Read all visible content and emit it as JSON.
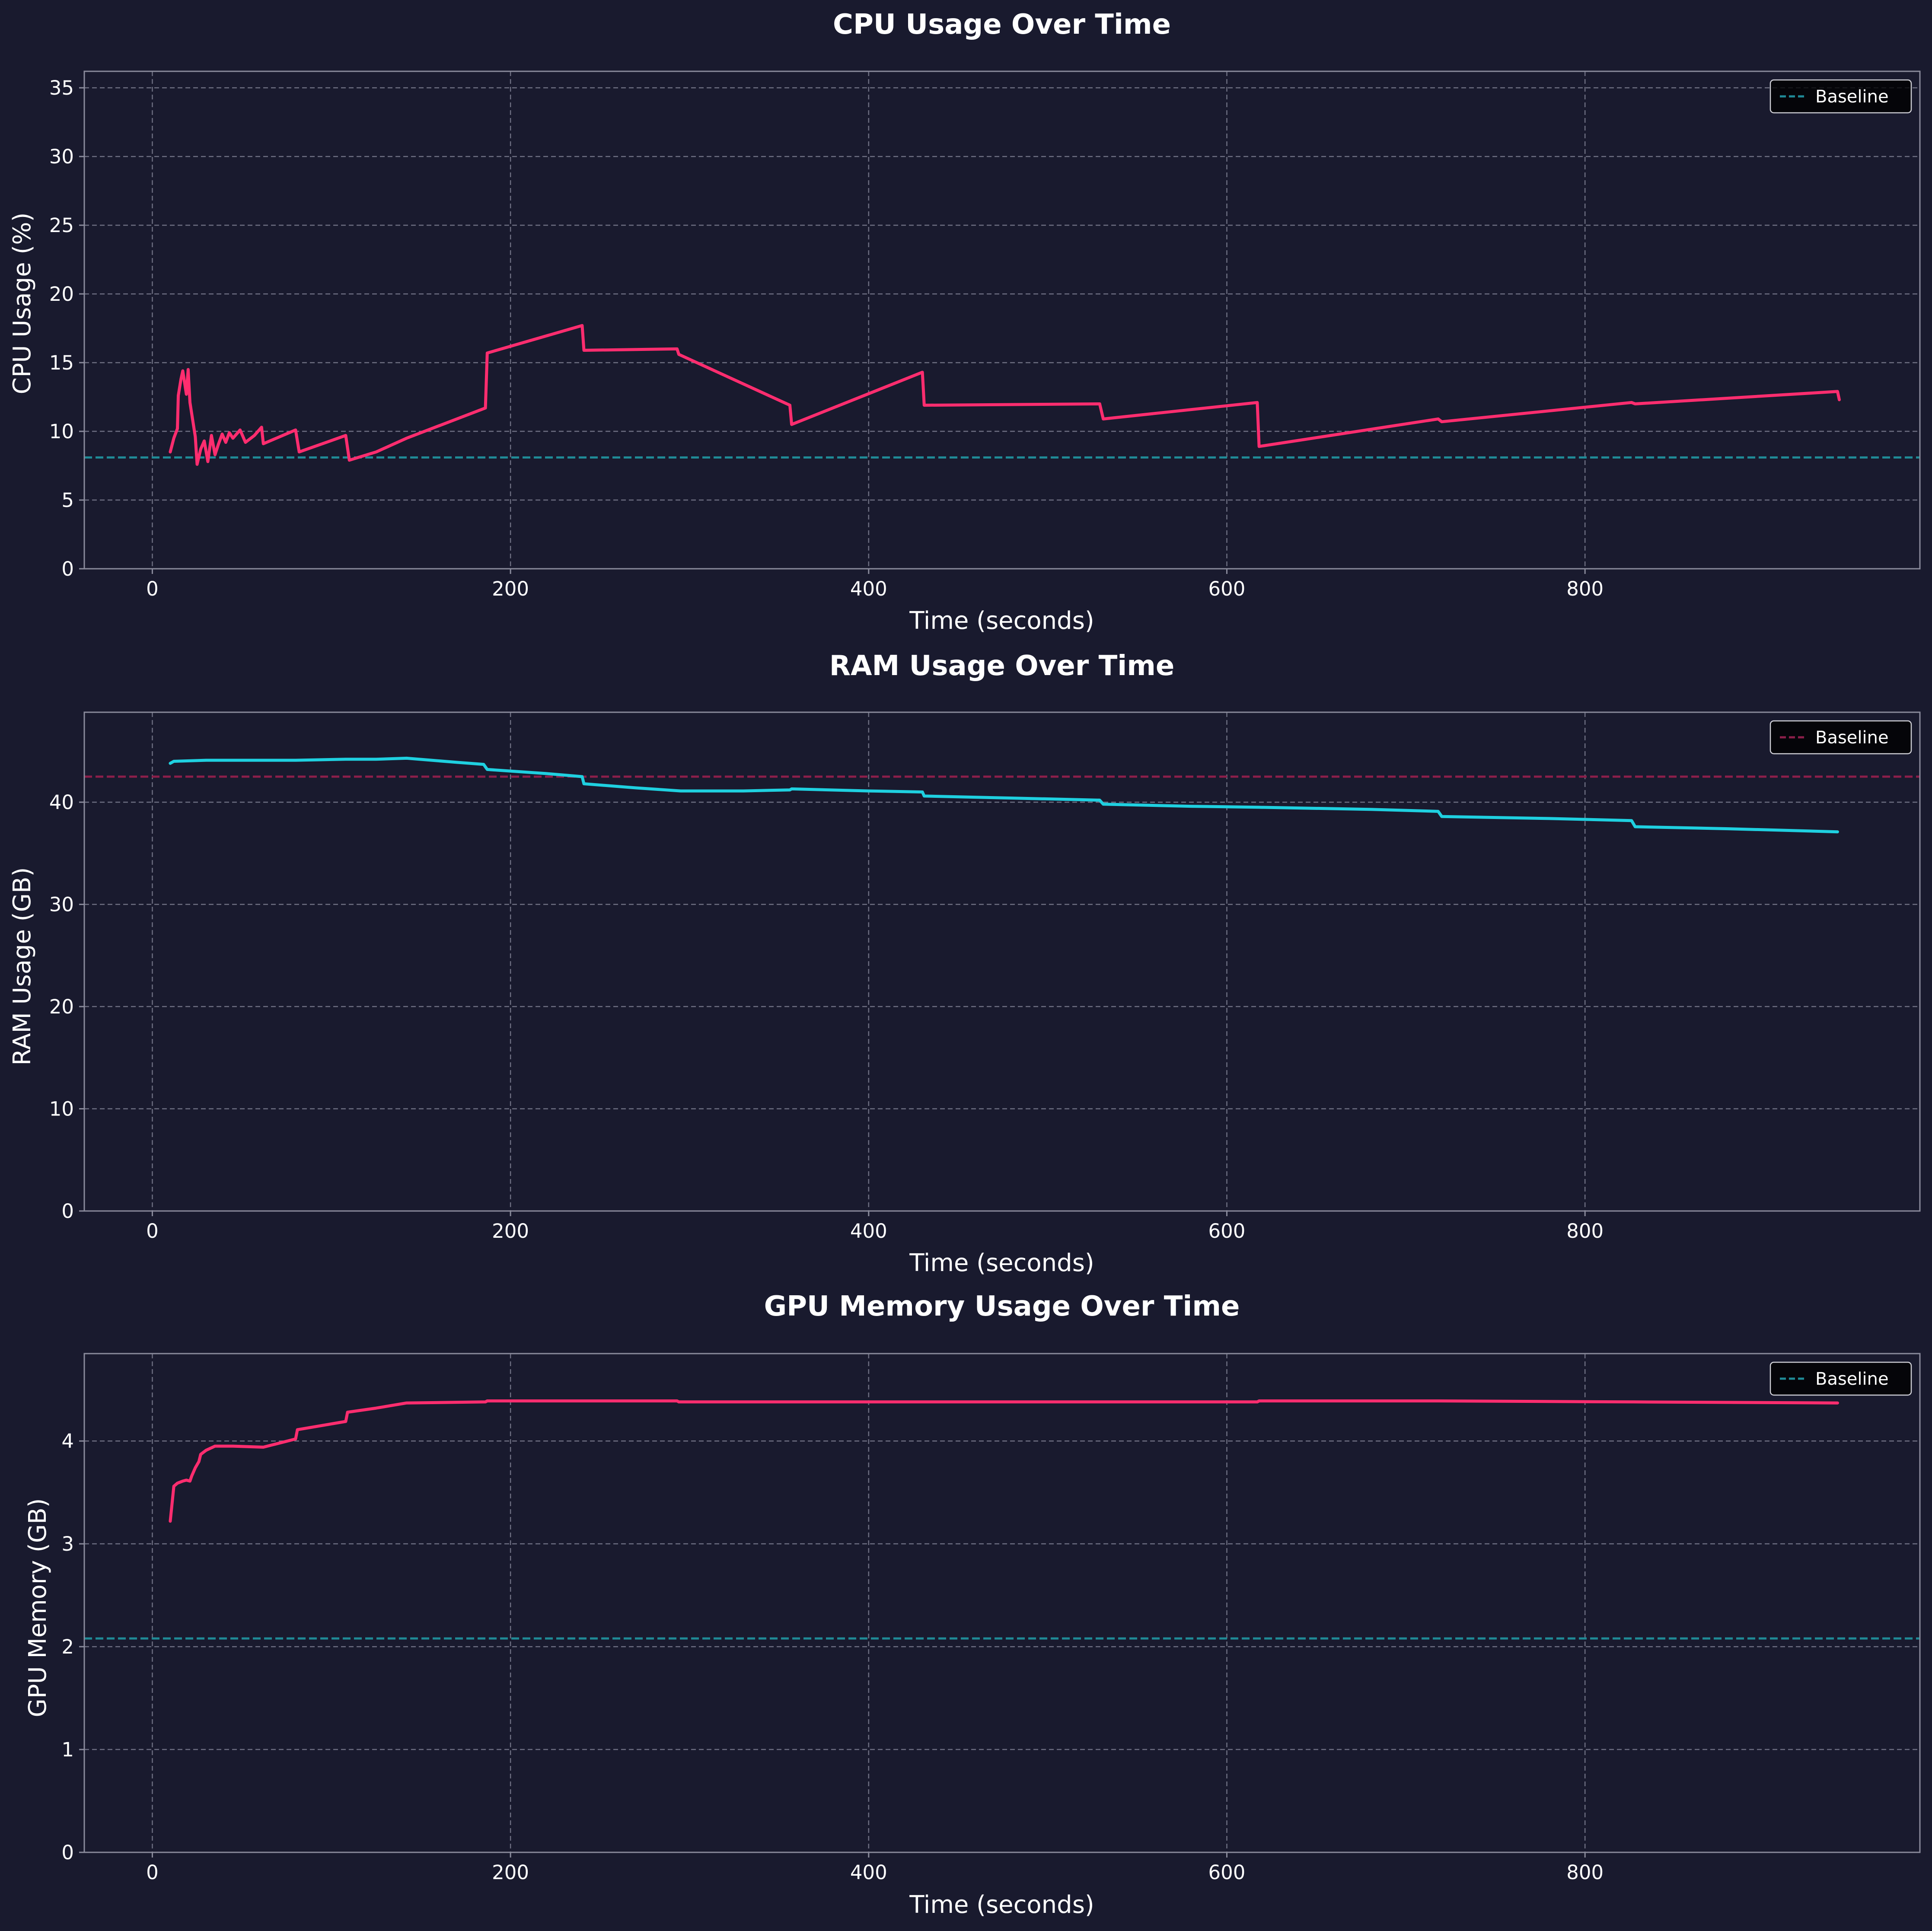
{
  "figure": {
    "background": "#191a2e",
    "panel_background": "#191a2e",
    "grid_color": "#6e6f82",
    "spine_color": "#8a8b9c",
    "text_color": "#ffffff"
  },
  "chart_data": [
    {
      "type": "line",
      "title": "CPU Usage Over Time",
      "xlabel": "Time (seconds)",
      "ylabel": "CPU Usage (%)",
      "xlim": [
        -38,
        987
      ],
      "ylim": [
        0,
        36.2
      ],
      "xticks": [
        0,
        200,
        400,
        600,
        800
      ],
      "yticks": [
        0,
        5,
        10,
        15,
        20,
        25,
        30,
        35
      ],
      "grid": true,
      "legend_position": "top-right",
      "series": [
        {
          "color": "#ff2d6f",
          "x": [
            10,
            12,
            14,
            14.5,
            16,
            17,
            19,
            20,
            21,
            24,
            25,
            27,
            29,
            31,
            33,
            35,
            37,
            39,
            41,
            43,
            45,
            47,
            49,
            52,
            57,
            61,
            62,
            80,
            82,
            108,
            110,
            125,
            142,
            186,
            187,
            240,
            241,
            293,
            294,
            356,
            357,
            430,
            431,
            529,
            531,
            617,
            618,
            718,
            720,
            826,
            828,
            941,
            942
          ],
          "y": [
            8.5,
            9.5,
            10.2,
            12.6,
            13.8,
            14.4,
            12.7,
            14.5,
            12.1,
            9.6,
            7.6,
            8.7,
            9.3,
            7.8,
            9.7,
            8.3,
            9.1,
            9.8,
            9.2,
            9.9,
            9.5,
            9.8,
            10.1,
            9.2,
            9.7,
            10.3,
            9.1,
            10.1,
            8.5,
            9.7,
            7.9,
            8.5,
            9.5,
            11.7,
            15.7,
            17.7,
            15.9,
            16.0,
            15.6,
            11.9,
            10.5,
            14.3,
            11.9,
            12.0,
            10.9,
            12.1,
            8.9,
            10.9,
            10.7,
            12.1,
            12.0,
            12.9,
            12.3
          ]
        }
      ],
      "reference_lines": [
        {
          "name": "Baseline",
          "y": 8.1,
          "color": "#1f8a96",
          "style": "dashed"
        }
      ]
    },
    {
      "type": "line",
      "title": "RAM Usage Over Time",
      "xlabel": "Time (seconds)",
      "ylabel": "RAM Usage (GB)",
      "xlim": [
        -38,
        987
      ],
      "ylim": [
        0,
        48.8
      ],
      "xticks": [
        0,
        200,
        400,
        600,
        800
      ],
      "yticks": [
        0,
        10,
        20,
        30,
        40
      ],
      "grid": true,
      "legend_position": "top-right",
      "series": [
        {
          "color": "#1fd0e0",
          "x": [
            10,
            12,
            30,
            50,
            80,
            108,
            125,
            142,
            170,
            185,
            187,
            220,
            240,
            241,
            270,
            295,
            330,
            356,
            357,
            400,
            430,
            431,
            480,
            529,
            531,
            580,
            618,
            680,
            718,
            720,
            780,
            826,
            828,
            880,
            941
          ],
          "y": [
            43.8,
            44.0,
            44.1,
            44.1,
            44.1,
            44.2,
            44.2,
            44.3,
            43.9,
            43.7,
            43.2,
            42.8,
            42.5,
            41.8,
            41.4,
            41.1,
            41.1,
            41.2,
            41.3,
            41.1,
            41.0,
            40.6,
            40.4,
            40.2,
            39.8,
            39.6,
            39.5,
            39.3,
            39.1,
            38.6,
            38.4,
            38.2,
            37.6,
            37.4,
            37.1
          ]
        }
      ],
      "reference_lines": [
        {
          "name": "Baseline",
          "y": 42.5,
          "color": "#8c1f4a",
          "style": "dashed"
        }
      ]
    },
    {
      "type": "line",
      "title": "GPU Memory Usage Over Time",
      "xlabel": "Time (seconds)",
      "ylabel": "GPU Memory (GB)",
      "xlim": [
        -38,
        987
      ],
      "ylim": [
        0,
        4.85
      ],
      "xticks": [
        0,
        200,
        400,
        600,
        800
      ],
      "yticks": [
        0,
        1,
        2,
        3,
        4
      ],
      "grid": true,
      "legend_position": "top-right",
      "series": [
        {
          "color": "#ff2d6f",
          "x": [
            10,
            12,
            14,
            17,
            19,
            21,
            22,
            24,
            26,
            27,
            30,
            35,
            45,
            62,
            80,
            81,
            108,
            109,
            125,
            142,
            186,
            187,
            240,
            293,
            294,
            357,
            430,
            529,
            617,
            618,
            718,
            826,
            827,
            941
          ],
          "y": [
            3.22,
            3.56,
            3.59,
            3.61,
            3.62,
            3.61,
            3.66,
            3.74,
            3.8,
            3.87,
            3.91,
            3.95,
            3.95,
            3.94,
            4.02,
            4.11,
            4.19,
            4.28,
            4.32,
            4.37,
            4.38,
            4.39,
            4.39,
            4.39,
            4.38,
            4.38,
            4.38,
            4.38,
            4.38,
            4.39,
            4.39,
            4.38,
            4.38,
            4.37
          ]
        }
      ],
      "reference_lines": [
        {
          "name": "Baseline",
          "y": 2.08,
          "color": "#1f8a96",
          "style": "dashed"
        }
      ]
    }
  ]
}
